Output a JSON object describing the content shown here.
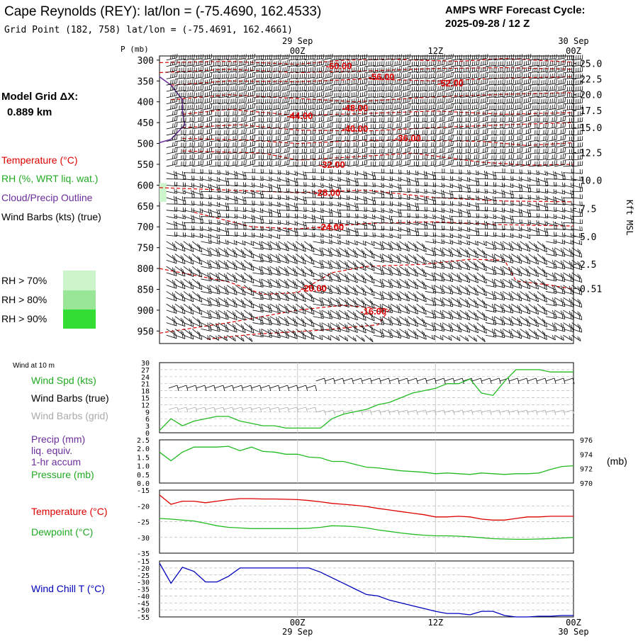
{
  "header": {
    "station_title": "Cape Reynolds (REY):  lat/lon = (-75.4690, 162.4533)",
    "grid_point": "Grid Point (182, 758) lat/lon = (-75.4691, 162.4661)",
    "cycle_line1": "AMPS WRF Forecast Cycle:",
    "cycle_line2": "2025-09-28 / 12  Z",
    "model_grid_label": "Model Grid ΔX:",
    "model_grid_value": "0.889 km"
  },
  "legend": {
    "temperature": "Temperature (°C)",
    "rh": "RH (%, WRT liq. wat.)",
    "cloud": "Cloud/Precip Outline",
    "wind_barbs": "Wind Barbs (kts) (true)",
    "rh_levels": [
      {
        "label": "RH > 70%",
        "color": "#ccf5cc"
      },
      {
        "label": "RH > 80%",
        "color": "#99e699"
      },
      {
        "label": "RH > 90%",
        "color": "#33dd33"
      }
    ]
  },
  "colors": {
    "temperature": "#dd0000",
    "rh": "#22aa22",
    "cloud": "#6a2d9a",
    "wind": "#000000",
    "grid_barbs": "#aaaaaa",
    "chill": "#0000bb",
    "dewpoint": "#22bb22",
    "pressure": "#22bb22",
    "precip": "#6a2d9a"
  },
  "time_axis": {
    "ticks": [
      {
        "t": 12,
        "label": "00Z",
        "date": "29 Sep"
      },
      {
        "t": 24,
        "label": "12Z",
        "date": ""
      },
      {
        "t": 36,
        "label": "00Z",
        "date": "30 Sep"
      }
    ],
    "t_min": 0,
    "t_max": 36
  },
  "chart_data": [
    {
      "type": "contour",
      "id": "cross-section",
      "title": "Vertical time-height section",
      "ylabel_left": "P (mb)",
      "ylabel_right": "Kft MSL",
      "pressure_levels": [
        300,
        350,
        400,
        450,
        500,
        550,
        600,
        650,
        700,
        750,
        800,
        850,
        900,
        950
      ],
      "pressure_range": [
        290,
        980
      ],
      "height_ticks": [
        {
          "p": 308,
          "label": "25.0"
        },
        {
          "p": 345,
          "label": "22.5"
        },
        {
          "p": 383,
          "label": "20.0"
        },
        {
          "p": 421,
          "label": "17.5"
        },
        {
          "p": 462,
          "label": "15.0"
        },
        {
          "p": 522,
          "label": "12.5"
        },
        {
          "p": 588,
          "label": "10.0"
        },
        {
          "p": 656,
          "label": "7.5"
        },
        {
          "p": 723,
          "label": "5.0"
        },
        {
          "p": 790,
          "label": "2.5"
        },
        {
          "p": 848,
          "label": "0.51"
        }
      ],
      "isotherm_labels": [
        {
          "t": 15.6,
          "p": 313,
          "label": "-60.00"
        },
        {
          "t": 19.3,
          "p": 339,
          "label": "-56.00"
        },
        {
          "t": 25.3,
          "p": 355,
          "label": "-52.00"
        },
        {
          "t": 17.0,
          "p": 414,
          "label": "-48.00"
        },
        {
          "t": 12.2,
          "p": 433,
          "label": "-44.00"
        },
        {
          "t": 17.0,
          "p": 463,
          "label": "-40.00"
        },
        {
          "t": 21.6,
          "p": 486,
          "label": "-36.00"
        },
        {
          "t": 15.0,
          "p": 550,
          "label": "-32.00"
        },
        {
          "t": 14.6,
          "p": 617,
          "label": "-28.00"
        },
        {
          "t": 14.9,
          "p": 700,
          "label": "-24.00"
        },
        {
          "t": 13.4,
          "p": 847,
          "label": "-20.00"
        },
        {
          "t": 18.6,
          "p": 902,
          "label": "-16.00"
        }
      ],
      "isotherms": [
        {
          "level": -60,
          "points": [
            [
              0,
              306
            ],
            [
              6,
              303
            ],
            [
              12,
              310
            ],
            [
              16,
              300
            ],
            [
              20,
              298
            ],
            [
              26,
              303
            ],
            [
              30,
              296
            ],
            [
              36,
              305
            ]
          ]
        },
        {
          "level": -56,
          "points": [
            [
              0,
              330
            ],
            [
              6,
              322
            ],
            [
              12,
              330
            ],
            [
              19,
              325
            ],
            [
              24,
              320
            ],
            [
              30,
              318
            ],
            [
              36,
              322
            ]
          ]
        },
        {
          "level": -52,
          "points": [
            [
              1,
              360
            ],
            [
              6,
              350
            ],
            [
              12,
              352
            ],
            [
              18,
              345
            ],
            [
              24,
              350
            ],
            [
              30,
              343
            ],
            [
              36,
              340
            ]
          ]
        },
        {
          "level": -48,
          "points": [
            [
              1,
              395
            ],
            [
              6,
              383
            ],
            [
              12,
              392
            ],
            [
              17,
              400
            ],
            [
              24,
              388
            ],
            [
              30,
              382
            ],
            [
              36,
              378
            ]
          ]
        },
        {
          "level": -44,
          "points": [
            [
              2,
              430
            ],
            [
              6,
              418
            ],
            [
              12,
              433
            ],
            [
              18,
              428
            ],
            [
              24,
              422
            ],
            [
              30,
              430
            ],
            [
              36,
              426
            ]
          ]
        },
        {
          "level": -40,
          "points": [
            [
              2,
              462
            ],
            [
              7,
              455
            ],
            [
              12,
              468
            ],
            [
              18,
              470
            ],
            [
              24,
              462
            ],
            [
              30,
              455
            ],
            [
              36,
              450
            ]
          ]
        },
        {
          "level": -36,
          "points": [
            [
              2,
              488
            ],
            [
              8,
              492
            ],
            [
              12,
              500
            ],
            [
              18,
              492
            ],
            [
              22,
              492
            ],
            [
              28,
              495
            ],
            [
              32,
              505
            ],
            [
              36,
              498
            ]
          ]
        },
        {
          "level": -32,
          "points": [
            [
              2,
              518
            ],
            [
              9,
              523
            ],
            [
              12,
              540
            ],
            [
              17,
              532
            ],
            [
              22,
              523
            ],
            [
              28,
              545
            ],
            [
              32,
              552
            ],
            [
              36,
              550
            ]
          ]
        },
        {
          "level": -28,
          "points": [
            [
              0,
              606
            ],
            [
              8,
              614
            ],
            [
              12,
              618
            ],
            [
              18,
              612
            ],
            [
              24,
              630
            ],
            [
              30,
              638
            ],
            [
              36,
              640
            ]
          ]
        },
        {
          "level": -24,
          "points": [
            [
              3,
              665
            ],
            [
              8,
              700
            ],
            [
              12,
              705
            ],
            [
              18,
              692
            ],
            [
              24,
              688
            ],
            [
              30,
              695
            ],
            [
              36,
              698
            ]
          ]
        },
        {
          "level": -20,
          "points": [
            [
              0,
              800
            ],
            [
              6,
              832
            ],
            [
              9,
              862
            ],
            [
              12,
              858
            ],
            [
              15,
              810
            ],
            [
              18,
              795
            ],
            [
              23,
              790
            ],
            [
              27,
              778
            ],
            [
              30,
              780
            ],
            [
              31,
              830
            ],
            [
              34,
              840
            ],
            [
              36,
              850
            ]
          ]
        },
        {
          "level": -16,
          "points": [
            [
              0,
              955
            ],
            [
              6,
              930
            ],
            [
              12,
              900
            ],
            [
              16,
              888
            ],
            [
              20,
              898
            ],
            [
              19,
              935
            ],
            [
              14,
              948
            ],
            [
              8,
              958
            ],
            [
              4,
              970
            ]
          ]
        }
      ],
      "cloud_outline": [
        [
          0,
          340
        ],
        [
          1,
          360
        ],
        [
          2,
          395
        ],
        [
          2,
          425
        ],
        [
          2.2,
          455
        ],
        [
          1,
          490
        ],
        [
          0,
          498
        ]
      ],
      "rh_patches": [
        {
          "t0": 0,
          "t1": 0.6,
          "p0": 595,
          "p1": 640,
          "category": "RH > 70%"
        }
      ]
    },
    {
      "type": "line",
      "id": "wind-panel",
      "title": "Wind at 10 m",
      "labels": [
        "Wind Spd (kts)",
        "Wind Barbs (true)",
        "Wind Barbs (grid)"
      ],
      "yticks": [
        0,
        3,
        6,
        9,
        12,
        15,
        18,
        21,
        24,
        27,
        30
      ],
      "ylim": [
        0,
        30
      ],
      "series": [
        {
          "name": "Wind Spd (kts)",
          "x": [
            0,
            1,
            2,
            3,
            4,
            5,
            6,
            7,
            8,
            9,
            10,
            11,
            12,
            13,
            14,
            15,
            16,
            17,
            18,
            19,
            20,
            21,
            22,
            23,
            24,
            25,
            26,
            27,
            28,
            29,
            30,
            31,
            32,
            33,
            34,
            35,
            36
          ],
          "values": [
            1,
            6,
            3,
            5,
            6,
            7,
            7,
            5,
            4,
            3,
            3,
            2,
            2,
            2,
            2,
            6,
            8,
            9,
            10,
            12,
            13,
            15,
            17,
            18,
            19,
            21,
            21,
            23,
            17,
            16,
            22,
            27,
            27,
            27,
            26,
            26,
            26
          ]
        }
      ]
    },
    {
      "type": "line",
      "id": "precip-pressure-panel",
      "labels": [
        "Precip (mm)",
        "liq. equiv.",
        "1-hr accum",
        "Pressure (mb)"
      ],
      "left_yticks": [
        "0.0",
        "0.5",
        "1.0",
        "1.5",
        "2.0",
        "2.5"
      ],
      "right_yticks": [
        "970",
        "972",
        "974",
        "976"
      ],
      "right_label": "(mb)",
      "ylim": [
        0,
        2.5
      ],
      "right_ylim": [
        970,
        976
      ],
      "series": [
        {
          "name": "Pressure (mb)",
          "x": [
            0,
            1,
            2,
            3,
            4,
            5,
            6,
            7,
            8,
            9,
            10,
            11,
            12,
            13,
            14,
            15,
            16,
            17,
            18,
            19,
            20,
            21,
            22,
            23,
            24,
            25,
            26,
            27,
            28,
            29,
            30,
            31,
            32,
            33,
            34,
            35,
            36
          ],
          "values": [
            974.3,
            973.1,
            974.3,
            975.0,
            975.0,
            975.0,
            975.1,
            974.5,
            975.0,
            974.4,
            974.3,
            974.0,
            974.0,
            973.6,
            973.5,
            973.0,
            973.0,
            972.6,
            972.2,
            972.1,
            971.9,
            971.7,
            971.6,
            971.5,
            971.3,
            971.4,
            971.3,
            971.2,
            971.4,
            971.3,
            971.2,
            971.3,
            971.3,
            971.4,
            971.9,
            972.3,
            972.4
          ]
        },
        {
          "name": "Precip (mm)",
          "x": [
            0,
            36
          ],
          "values": [
            0,
            0
          ]
        }
      ]
    },
    {
      "type": "line",
      "id": "temperature-panel",
      "labels": [
        "Temperature (°C)",
        "Dewpoint (°C)"
      ],
      "yticks": [
        -15,
        -20,
        -25,
        -30,
        -35
      ],
      "ylim": [
        -35,
        -15
      ],
      "series": [
        {
          "name": "Temperature (°C)",
          "x": [
            0,
            1,
            2,
            3,
            4,
            5,
            6,
            7,
            8,
            9,
            10,
            11,
            12,
            13,
            14,
            15,
            16,
            17,
            18,
            19,
            20,
            21,
            22,
            23,
            24,
            25,
            26,
            27,
            28,
            29,
            30,
            31,
            32,
            33,
            34,
            35,
            36
          ],
          "values": [
            -16.5,
            -19.5,
            -18.5,
            -18.5,
            -19.0,
            -18.5,
            -18.0,
            -17.7,
            -17.7,
            -17.8,
            -17.8,
            -17.9,
            -18.0,
            -18.3,
            -18.7,
            -19.2,
            -19.5,
            -19.8,
            -20.2,
            -20.8,
            -21.3,
            -21.8,
            -22.3,
            -22.8,
            -23.5,
            -23.5,
            -23.3,
            -23.5,
            -24.2,
            -24.5,
            -24.5,
            -24.0,
            -23.5,
            -23.5,
            -23.3,
            -23.3,
            -23.3
          ]
        },
        {
          "name": "Dewpoint (°C)",
          "x": [
            0,
            1,
            2,
            3,
            4,
            5,
            6,
            7,
            8,
            9,
            10,
            11,
            12,
            13,
            14,
            15,
            16,
            17,
            18,
            19,
            20,
            21,
            22,
            23,
            24,
            25,
            26,
            27,
            28,
            29,
            30,
            31,
            32,
            33,
            34,
            35,
            36
          ],
          "values": [
            -24.0,
            -24.2,
            -24.5,
            -24.8,
            -25.5,
            -26.3,
            -26.8,
            -27.0,
            -27.2,
            -27.2,
            -27.2,
            -27.2,
            -27.2,
            -27.1,
            -26.8,
            -26.3,
            -26.4,
            -26.6,
            -27.0,
            -27.6,
            -28.1,
            -28.6,
            -29.0,
            -29.3,
            -29.5,
            -29.5,
            -29.6,
            -29.8,
            -30.1,
            -30.4,
            -30.5,
            -30.6,
            -30.6,
            -30.5,
            -30.4,
            -30.2,
            -30.0
          ]
        }
      ]
    },
    {
      "type": "line",
      "id": "wind-chill-panel",
      "labels": [
        "Wind Chill T (°C)"
      ],
      "yticks": [
        -15,
        -20,
        -25,
        -30,
        -35,
        -40,
        -45,
        -50,
        -55
      ],
      "ylim": [
        -55,
        -15
      ],
      "series": [
        {
          "name": "Wind Chill T (°C)",
          "x": [
            0,
            1,
            2,
            3,
            4,
            5,
            6,
            7,
            8,
            9,
            10,
            11,
            12,
            13,
            14,
            15,
            16,
            17,
            18,
            19,
            20,
            21,
            22,
            23,
            24,
            25,
            26,
            27,
            28,
            29,
            30,
            31,
            32,
            33,
            34,
            35,
            36
          ],
          "values": [
            -16.5,
            -31.0,
            -19.5,
            -22.5,
            -30.0,
            -30.0,
            -26.0,
            -20.0,
            -20.0,
            -20.0,
            -20.0,
            -20.0,
            -20.0,
            -20.0,
            -23.0,
            -27.0,
            -31.0,
            -35.0,
            -39.0,
            -40.0,
            -43.0,
            -45.0,
            -47.0,
            -49.0,
            -51.0,
            -52.5,
            -52.5,
            -53.5,
            -51.0,
            -51.0,
            -54.0,
            -55.0,
            -55.0,
            -54.5,
            -54.5,
            -54.0,
            -54.0
          ]
        }
      ]
    }
  ]
}
